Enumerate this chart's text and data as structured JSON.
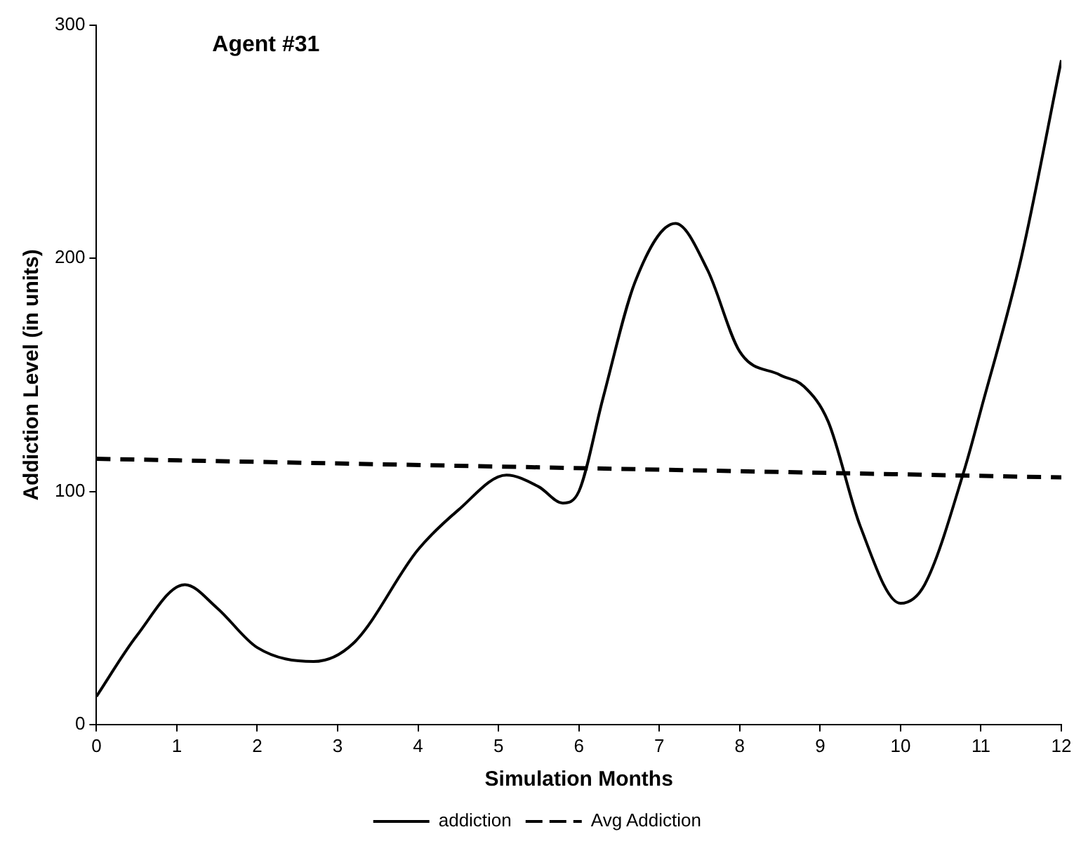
{
  "chart_data": {
    "type": "line",
    "title": "Agent #31",
    "xlabel": "Simulation Months",
    "ylabel": "Addiction Level (in units)",
    "xlim": [
      0,
      12
    ],
    "xticks": [
      0,
      1,
      2,
      3,
      4,
      5,
      6,
      7,
      8,
      9,
      10,
      11,
      12
    ],
    "ylim": [
      0,
      300
    ],
    "yticks": [
      0,
      100,
      200,
      300
    ],
    "grid": false,
    "legend": "bottom",
    "marker": "none",
    "series": [
      {
        "name": "addiction",
        "color": "#000000",
        "line_style": "solid",
        "x": [
          0,
          0.5,
          1.1,
          1.5,
          2,
          2.7,
          3.2,
          4,
          4.5,
          5.1,
          5.5,
          5.8,
          6,
          6.3,
          6.7,
          7.2,
          7.6,
          8,
          8.5,
          8.8,
          9.1,
          9.5,
          10,
          10.3,
          10.8,
          11,
          11.5,
          12
        ],
        "values": [
          12,
          38,
          60,
          50,
          33,
          27,
          35,
          75,
          92,
          107,
          102,
          95,
          100,
          140,
          190,
          215,
          195,
          160,
          150,
          145,
          130,
          85,
          52,
          60,
          110,
          135,
          200,
          285
        ]
      },
      {
        "name": "Avg Addiction",
        "color": "#000000",
        "line_style": "dashed",
        "x": [
          0,
          12
        ],
        "values": [
          114,
          106
        ]
      }
    ]
  }
}
